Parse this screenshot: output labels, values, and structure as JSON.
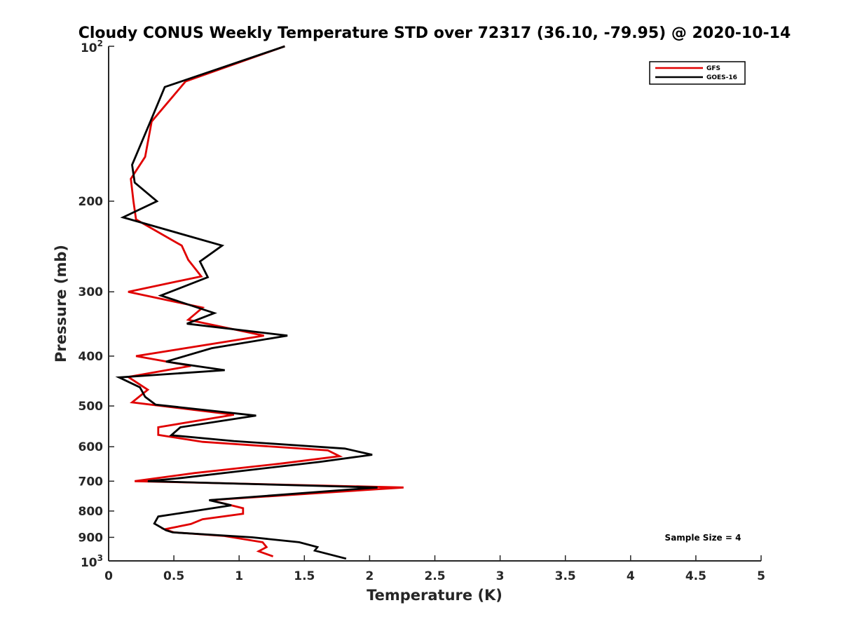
{
  "chart_data": {
    "type": "line",
    "title": "Cloudy CONUS Weekly Temperature STD over 72317 (36.10, -79.95) @ 2020-10-14",
    "xlabel": "Temperature (K)",
    "ylabel": "Pressure (mb)",
    "xlim": [
      0,
      5
    ],
    "ylim": [
      100,
      1000
    ],
    "y_scale": "log",
    "y_reversed": true,
    "x_ticks": [
      "0",
      "0.5",
      "1",
      "1.5",
      "2",
      "2.5",
      "3",
      "3.5",
      "4",
      "4.5",
      "5"
    ],
    "y_ticks": [
      {
        "value": 100,
        "base": "10",
        "exp": "2"
      },
      {
        "value": 200,
        "label": "200"
      },
      {
        "value": 300,
        "label": "300"
      },
      {
        "value": 400,
        "label": "400"
      },
      {
        "value": 500,
        "label": "500"
      },
      {
        "value": 600,
        "label": "600"
      },
      {
        "value": 700,
        "label": "700"
      },
      {
        "value": 800,
        "label": "800"
      },
      {
        "value": 900,
        "label": "900"
      },
      {
        "value": 1000,
        "base": "10",
        "exp": "3"
      }
    ],
    "grid": false,
    "legend_position": "top-right",
    "annotation": "Sample Size = 4",
    "series": [
      {
        "name": "GFS",
        "color": "#e00000",
        "points": [
          [
            1.35,
            100
          ],
          [
            0.59,
            117
          ],
          [
            0.33,
            140
          ],
          [
            0.28,
            164
          ],
          [
            0.17,
            181
          ],
          [
            0.19,
            200
          ],
          [
            0.21,
            217
          ],
          [
            0.56,
            244
          ],
          [
            0.61,
            260
          ],
          [
            0.71,
            280
          ],
          [
            0.15,
            300
          ],
          [
            0.72,
            322
          ],
          [
            0.61,
            340
          ],
          [
            1.19,
            365
          ],
          [
            0.21,
            400
          ],
          [
            0.63,
            418
          ],
          [
            0.15,
            439
          ],
          [
            0.3,
            465
          ],
          [
            0.18,
            492
          ],
          [
            0.96,
            520
          ],
          [
            0.38,
            550
          ],
          [
            0.38,
            569
          ],
          [
            0.72,
            587
          ],
          [
            1.68,
            610
          ],
          [
            1.77,
            626
          ],
          [
            1.32,
            647
          ],
          [
            0.66,
            675
          ],
          [
            0.2,
            700
          ],
          [
            2.26,
            720
          ],
          [
            0.78,
            762
          ],
          [
            1.03,
            790
          ],
          [
            1.03,
            810
          ],
          [
            0.72,
            830
          ],
          [
            0.63,
            848
          ],
          [
            0.43,
            868
          ],
          [
            0.5,
            880
          ],
          [
            0.88,
            894
          ],
          [
            1.18,
            920
          ],
          [
            1.21,
            940
          ],
          [
            1.15,
            958
          ],
          [
            1.26,
            980
          ]
        ]
      },
      {
        "name": "GOES-16",
        "color": "#000000",
        "points": [
          [
            1.35,
            100
          ],
          [
            0.43,
            120
          ],
          [
            0.32,
            140
          ],
          [
            0.18,
            170
          ],
          [
            0.2,
            184
          ],
          [
            0.37,
            200
          ],
          [
            0.11,
            215
          ],
          [
            0.87,
            244
          ],
          [
            0.7,
            262
          ],
          [
            0.76,
            281
          ],
          [
            0.4,
            305
          ],
          [
            0.81,
            330
          ],
          [
            0.6,
            346
          ],
          [
            1.37,
            365
          ],
          [
            0.79,
            386
          ],
          [
            0.44,
            410
          ],
          [
            0.89,
            426
          ],
          [
            0.08,
            440
          ],
          [
            0.24,
            460
          ],
          [
            0.28,
            480
          ],
          [
            0.36,
            497
          ],
          [
            1.13,
            522
          ],
          [
            0.55,
            550
          ],
          [
            0.48,
            570
          ],
          [
            0.96,
            585
          ],
          [
            1.81,
            605
          ],
          [
            2.02,
            622
          ],
          [
            1.62,
            642
          ],
          [
            0.56,
            690
          ],
          [
            0.3,
            700
          ],
          [
            2.06,
            720
          ],
          [
            0.77,
            762
          ],
          [
            0.94,
            780
          ],
          [
            0.38,
            820
          ],
          [
            0.35,
            846
          ],
          [
            0.44,
            872
          ],
          [
            0.49,
            880
          ],
          [
            1.1,
            900
          ],
          [
            1.46,
            920
          ],
          [
            1.6,
            940
          ],
          [
            1.58,
            955
          ],
          [
            1.82,
            990
          ]
        ]
      }
    ]
  }
}
